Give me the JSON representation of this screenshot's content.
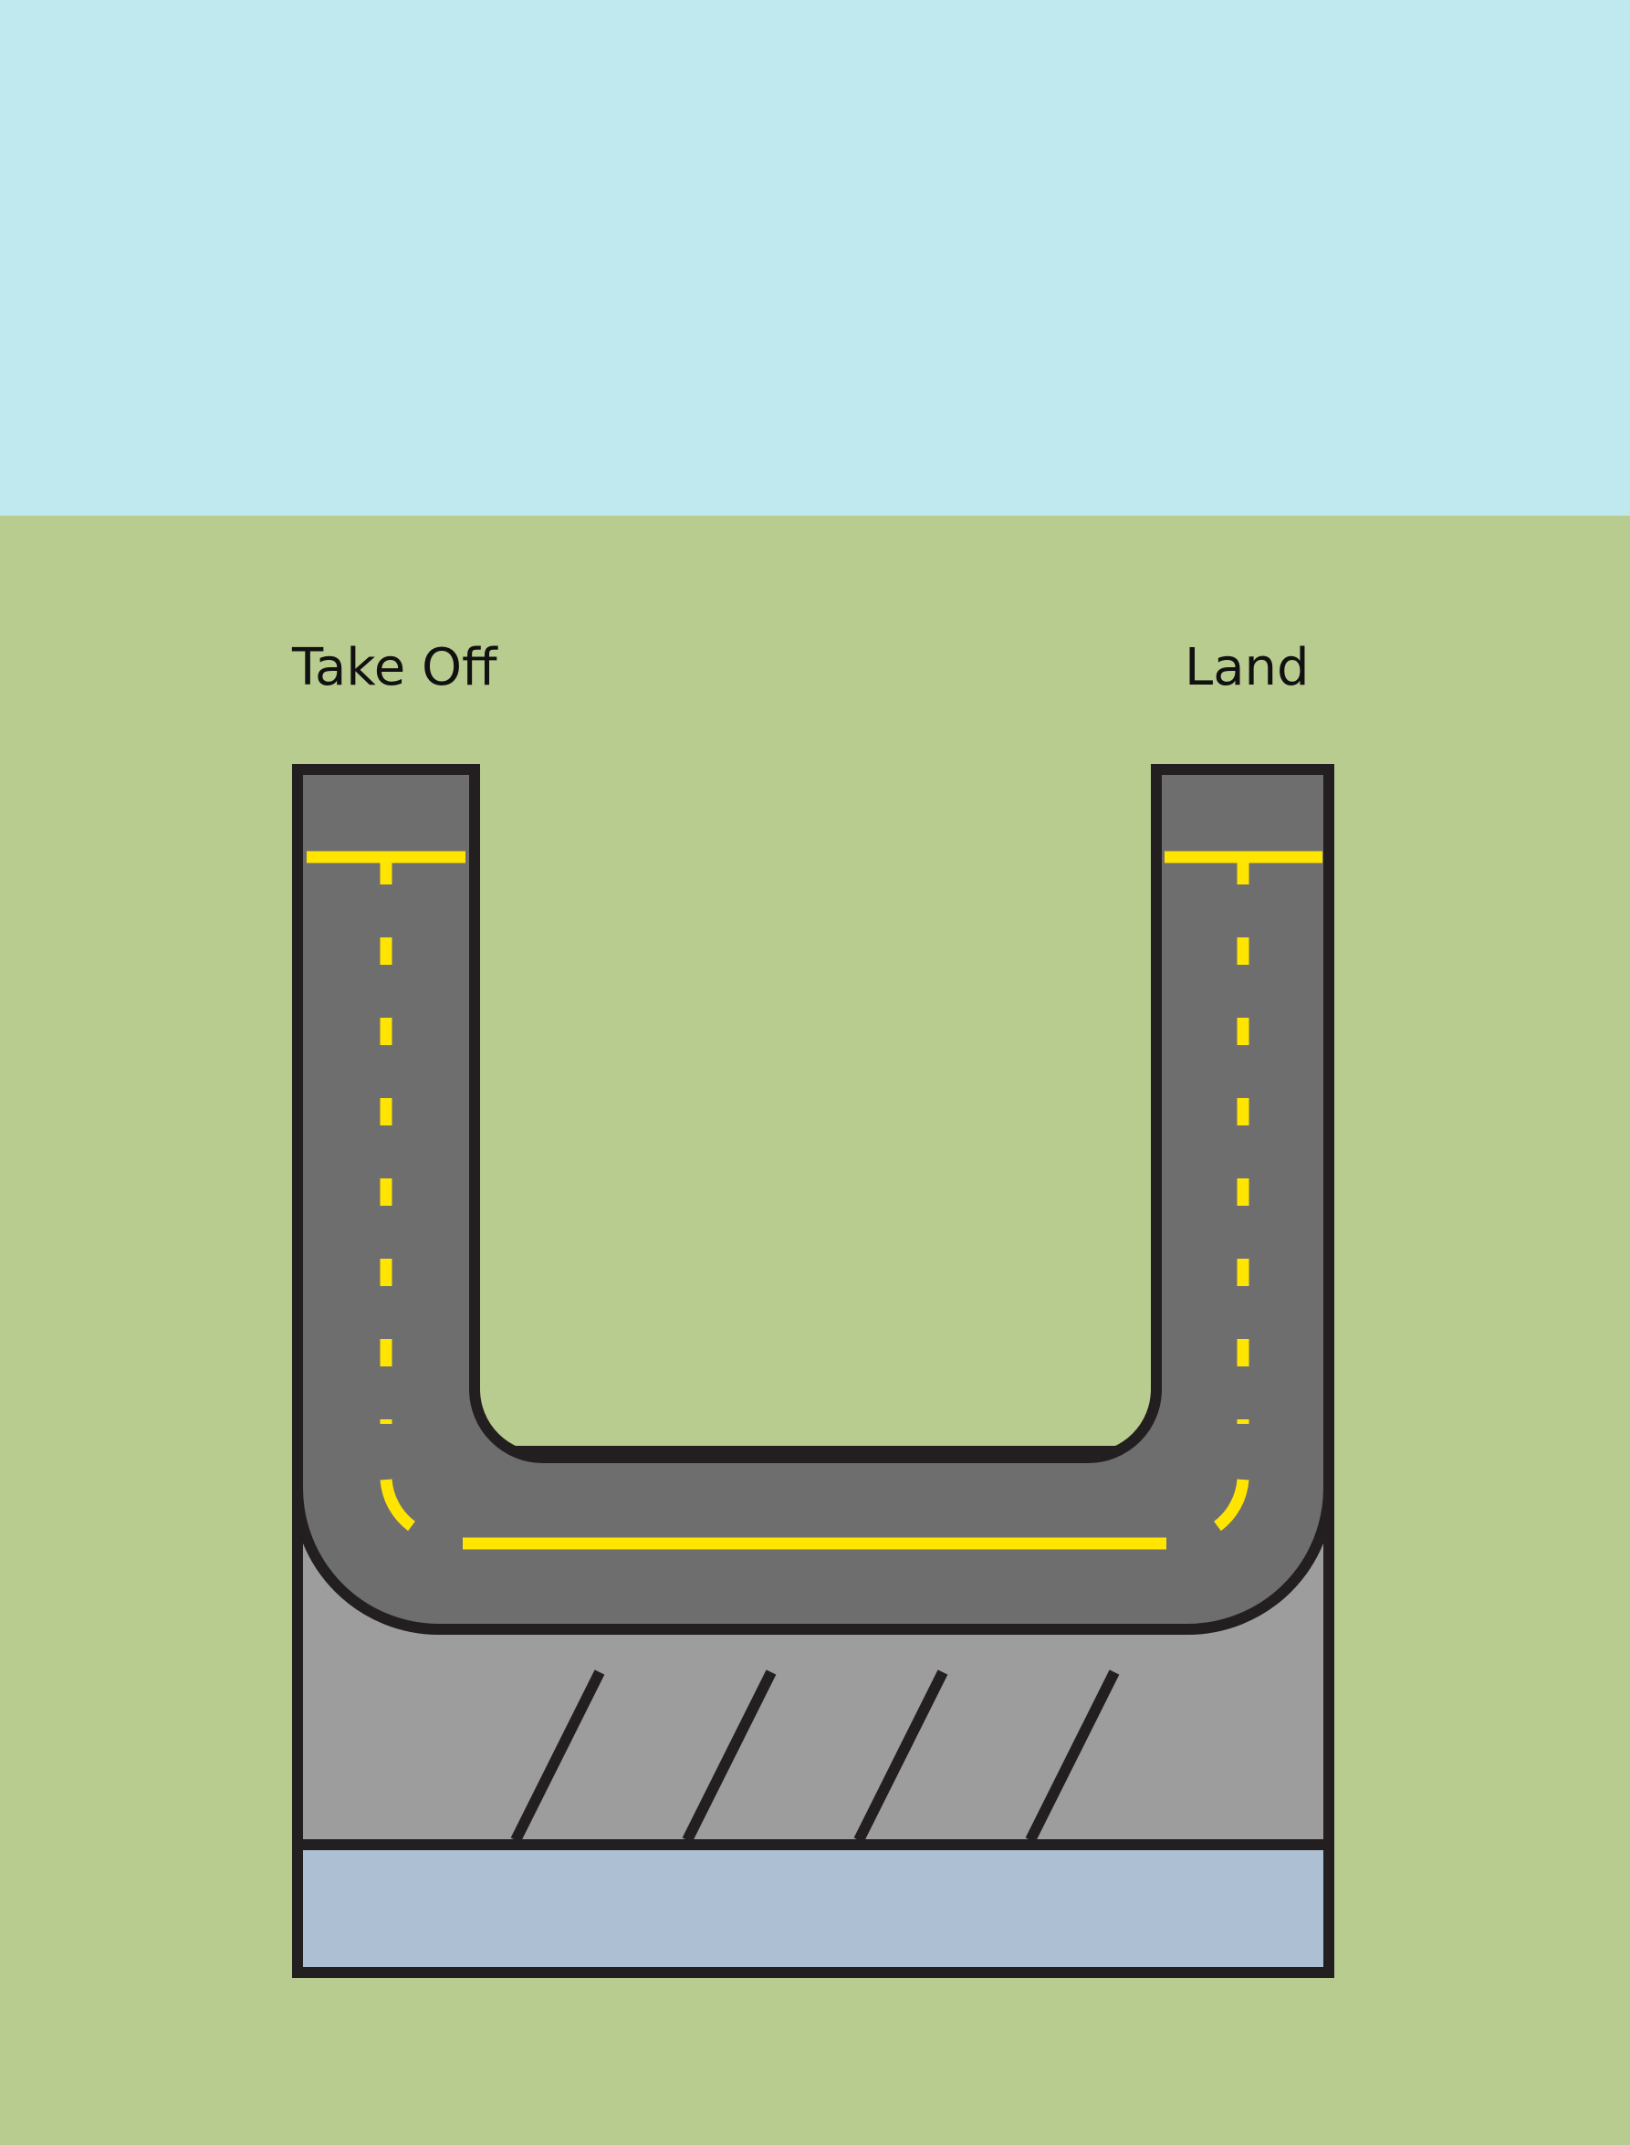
{
  "labels": {
    "take_off": "Take Off",
    "land": "Land"
  },
  "colors": {
    "sky": "#c0e8ef",
    "grass": "#b9cc8f",
    "runway": "#6e6e6e",
    "apron": "#9d9d9d",
    "terminal": "#adc0d3",
    "outline": "#231f20",
    "marking": "#ffe500"
  }
}
